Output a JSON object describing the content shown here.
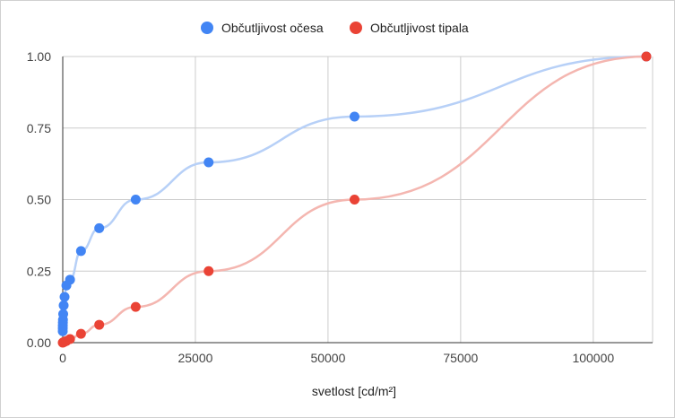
{
  "chart_data": {
    "type": "scatter",
    "xlabel": "svetlost [cd/m²]",
    "ylabel": "",
    "xlim": [
      0,
      110000
    ],
    "ylim": [
      0,
      1
    ],
    "x_ticks": [
      "0",
      "25000",
      "50000",
      "75000",
      "100000"
    ],
    "x_tick_values": [
      0,
      25000,
      50000,
      75000,
      100000
    ],
    "y_ticks": [
      "0.00",
      "0.25",
      "0.50",
      "0.75",
      "1.00"
    ],
    "y_tick_values": [
      0,
      0.25,
      0.5,
      0.75,
      1
    ],
    "grid": true,
    "legend_position": "top",
    "series": [
      {
        "name": "Občutljivost očesa",
        "color": "#4285f4",
        "trendline_color": "#b7d0f7",
        "x": [
          1,
          5,
          11,
          22,
          43,
          86,
          172,
          344,
          688,
          1375,
          3438,
          6875,
          13750,
          27500,
          55000,
          110000
        ],
        "y": [
          0.04,
          0.05,
          0.06,
          0.07,
          0.08,
          0.1,
          0.13,
          0.16,
          0.2,
          0.22,
          0.32,
          0.4,
          0.5,
          0.63,
          0.79,
          1.0
        ]
      },
      {
        "name": "Občutljivost tipala",
        "color": "#ea4335",
        "trendline_color": "#f4b6b0",
        "x": [
          0,
          172,
          344,
          688,
          1375,
          3438,
          6875,
          13750,
          27500,
          55000,
          110000
        ],
        "y": [
          0.0,
          0.002,
          0.003,
          0.006,
          0.0125,
          0.031,
          0.0625,
          0.125,
          0.25,
          0.5,
          1.0
        ]
      }
    ]
  }
}
